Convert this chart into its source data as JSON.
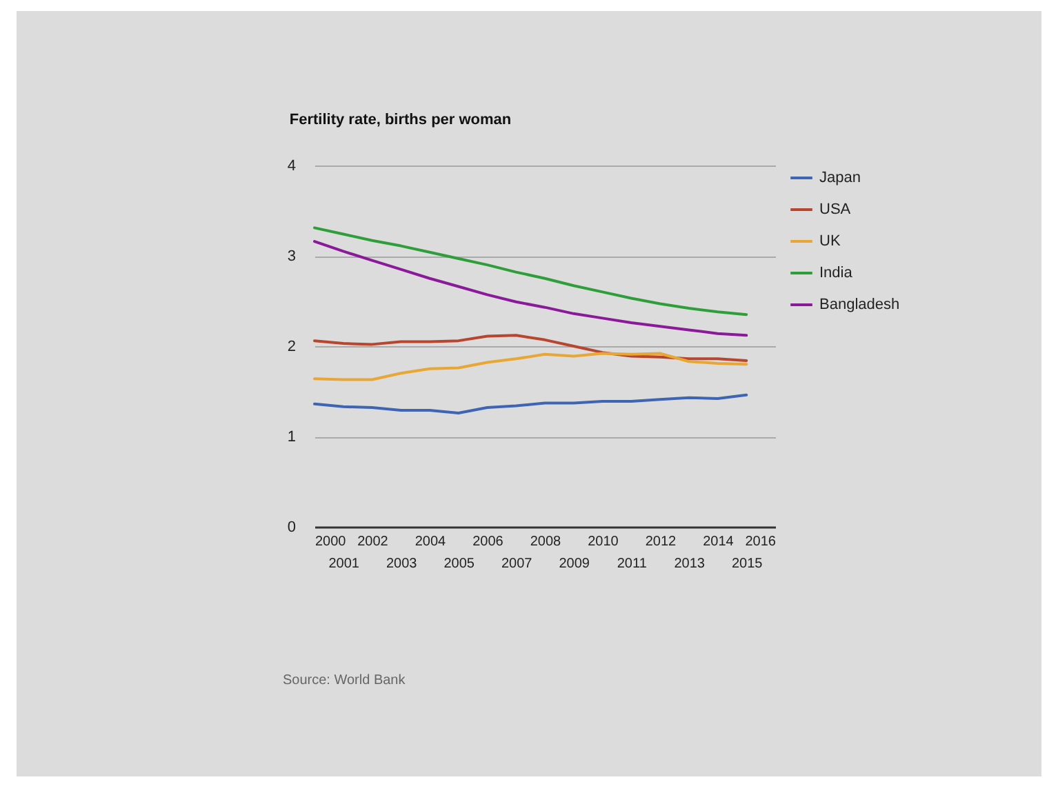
{
  "chart_data": {
    "type": "line",
    "title": "Fertility rate, births per woman",
    "x": [
      2000,
      2001,
      2002,
      2003,
      2004,
      2005,
      2006,
      2007,
      2008,
      2009,
      2010,
      2011,
      2012,
      2013,
      2014,
      2015
    ],
    "series": [
      {
        "name": "Japan",
        "color": "#3e64b4",
        "values": [
          1.36,
          1.33,
          1.32,
          1.29,
          1.29,
          1.26,
          1.32,
          1.34,
          1.37,
          1.37,
          1.39,
          1.39,
          1.41,
          1.43,
          1.42,
          1.46
        ]
      },
      {
        "name": "USA",
        "color": "#b8452e",
        "values": [
          2.06,
          2.03,
          2.02,
          2.05,
          2.05,
          2.06,
          2.11,
          2.12,
          2.07,
          2.0,
          1.93,
          1.89,
          1.88,
          1.86,
          1.86,
          1.84
        ]
      },
      {
        "name": "UK",
        "color": "#e8a735",
        "values": [
          1.64,
          1.63,
          1.63,
          1.7,
          1.75,
          1.76,
          1.82,
          1.86,
          1.91,
          1.89,
          1.92,
          1.91,
          1.92,
          1.83,
          1.81,
          1.8
        ]
      },
      {
        "name": "India",
        "color": "#2e9e3a",
        "values": [
          3.31,
          3.24,
          3.17,
          3.11,
          3.04,
          2.97,
          2.9,
          2.82,
          2.75,
          2.67,
          2.6,
          2.53,
          2.47,
          2.42,
          2.38,
          2.35
        ]
      },
      {
        "name": "Bangladesh",
        "color": "#8a1a9a",
        "values": [
          3.16,
          3.05,
          2.95,
          2.85,
          2.75,
          2.66,
          2.57,
          2.49,
          2.43,
          2.36,
          2.31,
          2.26,
          2.22,
          2.18,
          2.14,
          2.12
        ]
      }
    ],
    "xlim": [
      2000,
      2016
    ],
    "xticks": [
      2000,
      2002,
      2004,
      2006,
      2008,
      2010,
      2012,
      2014,
      2016
    ],
    "x2lim": [
      2000,
      2016
    ],
    "x2ticks": [
      2001,
      2003,
      2005,
      2007,
      2009,
      2011,
      2013,
      2015
    ],
    "ylim": [
      0,
      4
    ],
    "yticks": [
      0,
      1,
      2,
      3,
      4
    ],
    "grid": "y",
    "legend": "top right",
    "marker": "none",
    "line_style": "solid",
    "annotations": [
      "Source: World Bank"
    ]
  }
}
